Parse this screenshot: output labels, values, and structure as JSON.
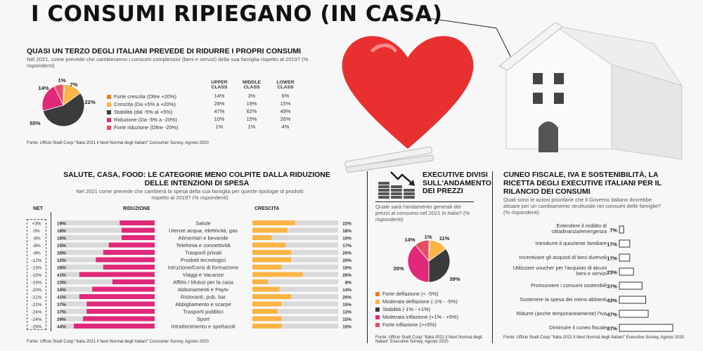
{
  "title": "I CONSUMI RIPIEGANO (IN CASA)",
  "colors": {
    "orange": "#ef7d1c",
    "yellow": "#fbb445",
    "dark": "#3b3b3b",
    "pink": "#e0297a",
    "red_light": "#e84c65",
    "bar_track": "#d9d9d9",
    "heart": "#e83030"
  },
  "section1": {
    "title": "QUASI UN TERZO DEGLI ITALIANI PREVEDE DI RIDURRE I PROPRI CONSUMI",
    "subtitle": "Nel 2021, come prevede che cambieranno i consumi complessivi (beni e servizi) della sua famiglia rispetto al 2019? (% rispondenti)",
    "source": "Fonte: Ufficio Studi Coop \"Italia 2021 il Next Normal degli Italiani\" Consumer Survey, Agosto 2020",
    "class_headers": [
      "UPPER CLASS",
      "MIDDLE CLASS",
      "LOWER CLASS"
    ]
  },
  "section2": {
    "title_line1": "SALUTE, CASA, FOOD: LE CATEGORIE MENO COLPITE DALLA RIDUZIONE",
    "title_line2": "DELLE INTENZIONI DI SPESA",
    "subtitle": "Nel 2021 come prevede che cambierà la spesa della sua famiglia per queste tipologie di prodotti rispetto al 2019? (% rispondenti)",
    "col_net": "NET",
    "col_riduzione": "RIDUZIONE",
    "col_crescita": "CRESCITA",
    "source": "Fonte: Ufficio Studi Coop \"Italia 2021 il Next Normal degli Italiani\" Consumer Survey, Agosto 2020"
  },
  "section3": {
    "title": "EXECUTIVE DIVISI SULL'ANDAMENTO DEI PREZZI",
    "subtitle": "Quale sarà l'andamento generali dei prezzi al consumo nel 2021 in Italia? (% rispondenti)",
    "source": "Fonte: Ufficio Studi Coop \"Italia 2021 il Next Normal degli Italiani\" Executive Survey, Agosto 2020"
  },
  "section4": {
    "title": "CUNEO FISCALE, IVA E SOSTENIBILITÀ, LA RICETTA DEGLI EXECUTIVE ITALIANI PER IL RILANCIO DEI CONSUMI",
    "subtitle": "Quali sono le azioni prioritarie che il Governo italiano dovrebbe attuare per un cambiamento strutturale nei consumi delle famiglie? (% rispondenti)",
    "source": "Fonte: Ufficio Studi Coop \"Italia 2021 il Next Normal degli Italiani\" Executive Survey, Agosto 2020"
  },
  "chart_data": [
    {
      "type": "pie",
      "labels": [
        "Forte crescita (Oltre +20%)",
        "Crescita (Da +5% a +20%)",
        "Stabilità (dal -5% al +5%)",
        "Riduzione (Da -5% a -20%)",
        "Forte riduzione (Oltre -20%)"
      ],
      "values": [
        1,
        14,
        55,
        22,
        7
      ],
      "value_labels": [
        "1%",
        "14%",
        "55%",
        "22%",
        "7%"
      ],
      "colors": [
        "#ef7d1c",
        "#fbb445",
        "#3b3b3b",
        "#e0297a",
        "#e84c65"
      ],
      "table": {
        "columns": [
          "UPPER CLASS",
          "MIDDLE CLASS",
          "LOWER CLASS"
        ],
        "rows": [
          [
            "14%",
            "3%",
            "6%"
          ],
          [
            "28%",
            "19%",
            "15%"
          ],
          [
            "47%",
            "62%",
            "49%"
          ],
          [
            "10%",
            "15%",
            "26%"
          ],
          [
            "1%",
            "1%",
            "4%"
          ]
        ]
      }
    },
    {
      "type": "bar",
      "categories": [
        "Salute",
        "Utenze acqua, elettricità, gas",
        "Alimentari e bevande",
        "Telefonia e connettività",
        "Trasporti privati",
        "Prodotti tecnologici",
        "Istruzione/Corsi di formazione",
        "Viaggi e Vacanze",
        "Affitto / Mutuo per la casa",
        "Abbonamenti e Paytv",
        "Ristoranti, pub, bar",
        "Abbigliamento e scarpe",
        "Trasporti pubblici",
        "Sport",
        "Intrattenimento e spettacoli"
      ],
      "net": [
        "+3%",
        "0%",
        "-8%",
        "-8%",
        "-8%",
        "-12%",
        "-13%",
        "-15%",
        "-15%",
        "-20%",
        "-21%",
        "-22%",
        "-24%",
        "-24%",
        "-29%"
      ],
      "series": [
        {
          "name": "RIDUZIONE",
          "values": [
            19,
            18,
            18,
            25,
            28,
            32,
            28,
            41,
            23,
            34,
            41,
            37,
            37,
            39,
            44
          ],
          "labels": [
            "19%",
            "18%",
            "18%",
            "25%",
            "28%",
            "32%",
            "28%",
            "41%",
            "23%",
            "34%",
            "41%",
            "37%",
            "37%",
            "39%",
            "44%"
          ]
        },
        {
          "name": "CRESCITA",
          "values": [
            22,
            18,
            10,
            17,
            20,
            20,
            15,
            26,
            8,
            14,
            20,
            15,
            13,
            15,
            15
          ],
          "labels": [
            "22%",
            "18%",
            "10%",
            "17%",
            "20%",
            "20%",
            "15%",
            "26%",
            "8%",
            "14%",
            "20%",
            "15%",
            "13%",
            "15%",
            "15%"
          ]
        }
      ]
    },
    {
      "type": "pie",
      "labels": [
        "Forte deflazione (< -5%)",
        "Moderata deflazione (-1% - -5%)",
        "Stabilità (-1% - +1%)",
        "Moderata inflazione (+1% - +5%)",
        "Forte inflazione (>+5%)"
      ],
      "values": [
        1,
        14,
        35,
        39,
        11
      ],
      "value_labels": [
        "1%",
        "14%",
        "35%",
        "39%",
        "11%"
      ],
      "colors": [
        "#ef7d1c",
        "#fbb445",
        "#3b3b3b",
        "#e0297a",
        "#e84c65"
      ]
    },
    {
      "type": "bar",
      "categories": [
        "Estendere il reddito di cittadinanza/emergenza",
        "Introdurre il quoziente familiare",
        "Incentivare gli acquisti di beni durevoli",
        "Utilizzare voucher per l'acquisto di alcuni beni e servizi",
        "Promuovere i consumi sostenibili",
        "Sostenere la spesa dei meno abbienti",
        "Ridurre (anche temporaneamente) l'Iva",
        "Diminuire il cuneo fiscale"
      ],
      "values": [
        7,
        17,
        17,
        23,
        37,
        43,
        47,
        87
      ],
      "labels": [
        "7%",
        "17%",
        "17%",
        "23%",
        "37%",
        "43%",
        "47%",
        "87%"
      ]
    }
  ]
}
